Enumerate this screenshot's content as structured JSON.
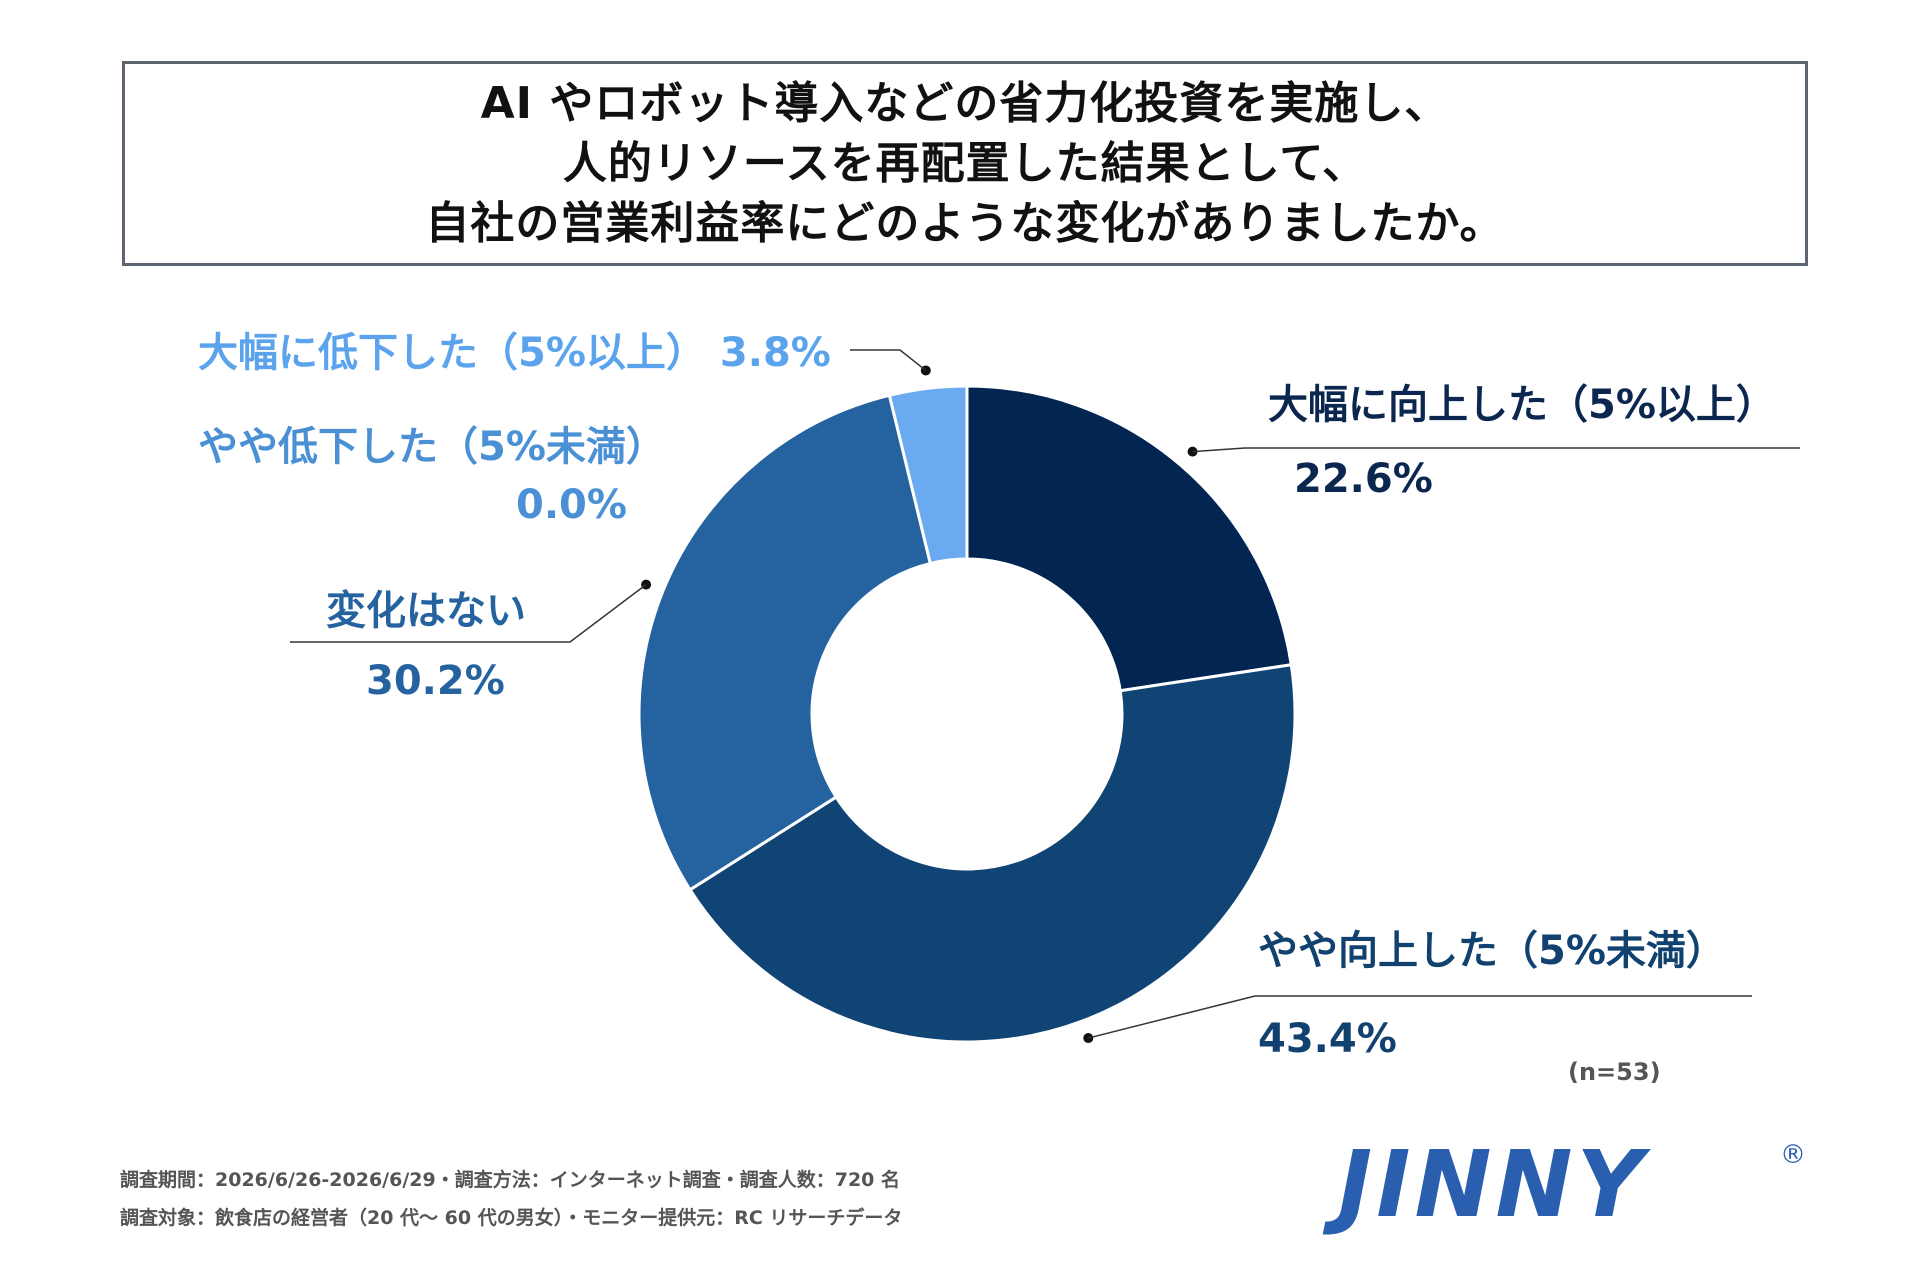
{
  "title": {
    "line1": "AI やロボット導入などの省力化投資を実施し、",
    "line2": "人的リソースを再配置した結果として、",
    "line3": "自社の営業利益率にどのような変化がありましたか。"
  },
  "chart_data": {
    "type": "pie",
    "donut": true,
    "categories": [
      "大幅に向上した（5%以上）",
      "やや向上した（5%未満）",
      "変化はない",
      "やや低下した（5%未満）",
      "大幅に低下した（5%以上）"
    ],
    "values": [
      22.6,
      43.4,
      30.2,
      0.0,
      3.8
    ],
    "value_labels": [
      "22.6%",
      "43.4%",
      "30.2%",
      "0.0%",
      "3.8%"
    ],
    "colors": [
      "#032552",
      "#104474",
      "#2563a0",
      "#4a90d4",
      "#6aaaf0"
    ],
    "label_colors": [
      "#0b2750",
      "#11426f",
      "#2563a0",
      "#4a90d4",
      "#5ba3ec"
    ]
  },
  "sample_size": "(n=53)",
  "footer": {
    "line1": "調査期間：2026/6/26-2026/6/29・調査方法：インターネット調査・調査人数：720 名",
    "line2": "調査対象：飲食店の経営者（20 代〜 60 代の男女）・モニター提供元：RC リサーチデータ"
  },
  "logo": {
    "text": "JINNY",
    "mark": "®"
  }
}
